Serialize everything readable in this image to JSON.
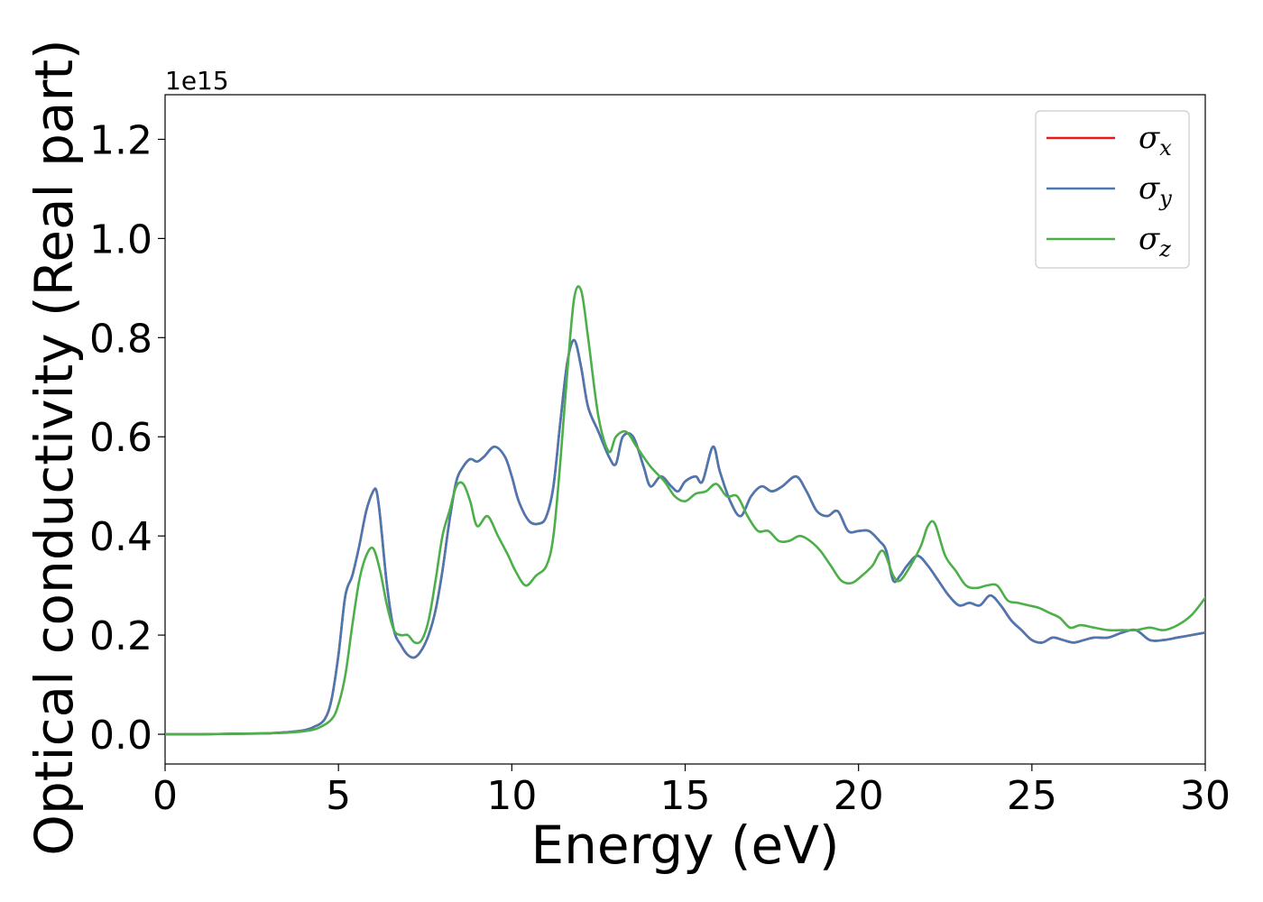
{
  "chart_data": {
    "type": "line",
    "title": "",
    "xlabel": "Energy (eV)",
    "ylabel": "Optical conductivity (Real part)",
    "y_offset_label": "1e15",
    "y_multiplier": 1000000000000000.0,
    "xlim": [
      0,
      30
    ],
    "ylim": [
      -0.06,
      1.29
    ],
    "x_ticks": [
      0,
      5,
      10,
      15,
      20,
      25,
      30
    ],
    "x_tick_labels": [
      "0",
      "5",
      "10",
      "15",
      "20",
      "25",
      "30"
    ],
    "y_ticks": [
      0.0,
      0.2,
      0.4,
      0.6,
      0.8,
      1.0,
      1.2
    ],
    "y_tick_labels": [
      "0.0",
      "0.2",
      "0.4",
      "0.6",
      "0.8",
      "1.0",
      "1.2"
    ],
    "grid": false,
    "legend_position": "top-right",
    "colors": {
      "x": "#e41a1c",
      "y": "#4a78b0",
      "z": "#4daf4a"
    },
    "series": [
      {
        "name": "σx",
        "symbol": "σ",
        "subscript": "x",
        "color": "#e41a1c",
        "x": [
          0,
          1,
          2,
          3,
          3.5,
          4,
          4.3,
          4.6,
          4.8,
          5.0,
          5.2,
          5.4,
          5.6,
          5.8,
          6.0,
          6.1,
          6.2,
          6.4,
          6.6,
          6.8,
          7.0,
          7.2,
          7.4,
          7.6,
          7.8,
          8.0,
          8.2,
          8.4,
          8.6,
          8.8,
          9.0,
          9.2,
          9.5,
          9.8,
          10.0,
          10.2,
          10.5,
          10.8,
          11.0,
          11.2,
          11.4,
          11.6,
          11.8,
          12.0,
          12.2,
          12.5,
          12.8,
          13.0,
          13.2,
          13.5,
          13.8,
          14.0,
          14.3,
          14.6,
          14.8,
          15.0,
          15.3,
          15.5,
          15.8,
          16.0,
          16.3,
          16.6,
          16.9,
          17.2,
          17.5,
          17.8,
          18.2,
          18.5,
          18.8,
          19.1,
          19.4,
          19.7,
          20.0,
          20.3,
          20.6,
          20.8,
          21.0,
          21.2,
          21.4,
          21.7,
          22.0,
          22.3,
          22.6,
          22.9,
          23.2,
          23.5,
          23.8,
          24.1,
          24.4,
          24.7,
          25.0,
          25.3,
          25.6,
          25.9,
          26.2,
          26.5,
          26.8,
          27.2,
          27.6,
          28.0,
          28.4,
          28.8,
          29.2,
          29.6,
          30.0
        ],
        "values": [
          0,
          0,
          0.001,
          0.002,
          0.004,
          0.008,
          0.015,
          0.03,
          0.07,
          0.16,
          0.28,
          0.32,
          0.38,
          0.45,
          0.49,
          0.49,
          0.44,
          0.3,
          0.21,
          0.18,
          0.16,
          0.155,
          0.17,
          0.2,
          0.25,
          0.33,
          0.43,
          0.51,
          0.54,
          0.555,
          0.55,
          0.56,
          0.58,
          0.56,
          0.52,
          0.47,
          0.43,
          0.425,
          0.44,
          0.5,
          0.63,
          0.75,
          0.795,
          0.74,
          0.66,
          0.61,
          0.56,
          0.545,
          0.6,
          0.6,
          0.54,
          0.5,
          0.52,
          0.5,
          0.49,
          0.51,
          0.52,
          0.51,
          0.58,
          0.53,
          0.47,
          0.44,
          0.48,
          0.5,
          0.49,
          0.5,
          0.52,
          0.49,
          0.45,
          0.44,
          0.45,
          0.41,
          0.41,
          0.41,
          0.39,
          0.37,
          0.31,
          0.32,
          0.34,
          0.36,
          0.34,
          0.31,
          0.28,
          0.26,
          0.265,
          0.26,
          0.28,
          0.26,
          0.23,
          0.21,
          0.19,
          0.185,
          0.195,
          0.19,
          0.185,
          0.19,
          0.195,
          0.195,
          0.205,
          0.21,
          0.19,
          0.19,
          0.195,
          0.2,
          0.205
        ]
      },
      {
        "name": "σy",
        "symbol": "σ",
        "subscript": "y",
        "color": "#4a78b0",
        "x": [
          0,
          1,
          2,
          3,
          3.5,
          4,
          4.3,
          4.6,
          4.8,
          5.0,
          5.2,
          5.4,
          5.6,
          5.8,
          6.0,
          6.1,
          6.2,
          6.4,
          6.6,
          6.8,
          7.0,
          7.2,
          7.4,
          7.6,
          7.8,
          8.0,
          8.2,
          8.4,
          8.6,
          8.8,
          9.0,
          9.2,
          9.5,
          9.8,
          10.0,
          10.2,
          10.5,
          10.8,
          11.0,
          11.2,
          11.4,
          11.6,
          11.8,
          12.0,
          12.2,
          12.5,
          12.8,
          13.0,
          13.2,
          13.5,
          13.8,
          14.0,
          14.3,
          14.6,
          14.8,
          15.0,
          15.3,
          15.5,
          15.8,
          16.0,
          16.3,
          16.6,
          16.9,
          17.2,
          17.5,
          17.8,
          18.2,
          18.5,
          18.8,
          19.1,
          19.4,
          19.7,
          20.0,
          20.3,
          20.6,
          20.8,
          21.0,
          21.2,
          21.4,
          21.7,
          22.0,
          22.3,
          22.6,
          22.9,
          23.2,
          23.5,
          23.8,
          24.1,
          24.4,
          24.7,
          25.0,
          25.3,
          25.6,
          25.9,
          26.2,
          26.5,
          26.8,
          27.2,
          27.6,
          28.0,
          28.4,
          28.8,
          29.2,
          29.6,
          30.0
        ],
        "values": [
          0,
          0,
          0.001,
          0.002,
          0.004,
          0.008,
          0.015,
          0.03,
          0.07,
          0.16,
          0.28,
          0.32,
          0.38,
          0.45,
          0.49,
          0.49,
          0.44,
          0.3,
          0.21,
          0.18,
          0.16,
          0.155,
          0.17,
          0.2,
          0.25,
          0.33,
          0.43,
          0.51,
          0.54,
          0.555,
          0.55,
          0.56,
          0.58,
          0.56,
          0.52,
          0.47,
          0.43,
          0.425,
          0.44,
          0.5,
          0.63,
          0.75,
          0.795,
          0.74,
          0.66,
          0.61,
          0.56,
          0.545,
          0.6,
          0.6,
          0.54,
          0.5,
          0.52,
          0.5,
          0.49,
          0.51,
          0.52,
          0.51,
          0.58,
          0.53,
          0.47,
          0.44,
          0.48,
          0.5,
          0.49,
          0.5,
          0.52,
          0.49,
          0.45,
          0.44,
          0.45,
          0.41,
          0.41,
          0.41,
          0.39,
          0.37,
          0.31,
          0.32,
          0.34,
          0.36,
          0.34,
          0.31,
          0.28,
          0.26,
          0.265,
          0.26,
          0.28,
          0.26,
          0.23,
          0.21,
          0.19,
          0.185,
          0.195,
          0.19,
          0.185,
          0.19,
          0.195,
          0.195,
          0.205,
          0.21,
          0.19,
          0.19,
          0.195,
          0.2,
          0.205
        ]
      },
      {
        "name": "σz",
        "symbol": "σ",
        "subscript": "z",
        "color": "#4daf4a",
        "x": [
          0,
          1,
          2,
          3,
          3.5,
          4,
          4.4,
          4.8,
          5.0,
          5.2,
          5.4,
          5.6,
          5.8,
          6.0,
          6.2,
          6.4,
          6.6,
          6.8,
          7.0,
          7.2,
          7.4,
          7.6,
          7.8,
          8.0,
          8.2,
          8.4,
          8.6,
          8.8,
          9.0,
          9.3,
          9.6,
          9.9,
          10.1,
          10.4,
          10.7,
          11.0,
          11.2,
          11.4,
          11.6,
          11.8,
          12.0,
          12.2,
          12.5,
          12.8,
          13.0,
          13.3,
          13.6,
          14.0,
          14.4,
          14.7,
          15.0,
          15.3,
          15.6,
          15.9,
          16.2,
          16.5,
          16.8,
          17.1,
          17.4,
          17.7,
          18.0,
          18.3,
          18.6,
          18.9,
          19.2,
          19.5,
          19.8,
          20.1,
          20.4,
          20.7,
          21.0,
          21.2,
          21.5,
          21.8,
          22.0,
          22.2,
          22.5,
          22.8,
          23.1,
          23.4,
          23.7,
          24.0,
          24.3,
          24.6,
          24.9,
          25.2,
          25.5,
          25.8,
          26.1,
          26.4,
          26.8,
          27.2,
          27.6,
          28.0,
          28.4,
          28.8,
          29.2,
          29.6,
          30.0
        ],
        "values": [
          0,
          0,
          0.001,
          0.002,
          0.003,
          0.006,
          0.012,
          0.03,
          0.06,
          0.12,
          0.22,
          0.31,
          0.36,
          0.375,
          0.33,
          0.26,
          0.21,
          0.2,
          0.2,
          0.185,
          0.19,
          0.23,
          0.31,
          0.4,
          0.45,
          0.5,
          0.505,
          0.47,
          0.42,
          0.44,
          0.4,
          0.36,
          0.33,
          0.3,
          0.32,
          0.34,
          0.4,
          0.55,
          0.73,
          0.88,
          0.895,
          0.8,
          0.64,
          0.57,
          0.6,
          0.61,
          0.58,
          0.54,
          0.51,
          0.48,
          0.47,
          0.485,
          0.49,
          0.505,
          0.48,
          0.48,
          0.44,
          0.41,
          0.41,
          0.39,
          0.39,
          0.4,
          0.39,
          0.37,
          0.34,
          0.31,
          0.305,
          0.32,
          0.34,
          0.37,
          0.32,
          0.31,
          0.34,
          0.38,
          0.42,
          0.425,
          0.36,
          0.33,
          0.3,
          0.295,
          0.3,
          0.3,
          0.27,
          0.265,
          0.26,
          0.255,
          0.245,
          0.235,
          0.215,
          0.22,
          0.215,
          0.21,
          0.21,
          0.21,
          0.215,
          0.21,
          0.22,
          0.24,
          0.275
        ]
      }
    ]
  }
}
